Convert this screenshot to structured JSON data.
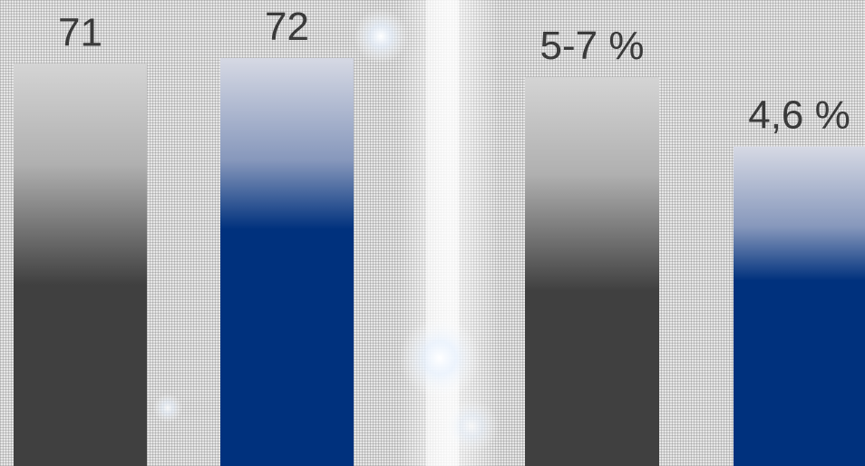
{
  "chart_data": {
    "type": "bar",
    "title": "",
    "xlabel": "",
    "ylabel": "",
    "bars": [
      {
        "label": "71",
        "value": 71,
        "scale": "count",
        "color": "gray"
      },
      {
        "label": "72",
        "value": 72,
        "scale": "count",
        "color": "blue"
      },
      {
        "label": "5-7 %",
        "value": 5.6,
        "scale": "percent",
        "color": "gray"
      },
      {
        "label": "4,6 %",
        "value": 4.6,
        "scale": "percent",
        "color": "blue"
      }
    ],
    "grid": false,
    "legend": "none"
  },
  "colors": {
    "gray_top": "#d4d4d4",
    "gray_bottom": "#404040",
    "blue_top": "#d6d9e4",
    "blue_bottom": "#00317d",
    "label_text": "#3a3a3a"
  }
}
